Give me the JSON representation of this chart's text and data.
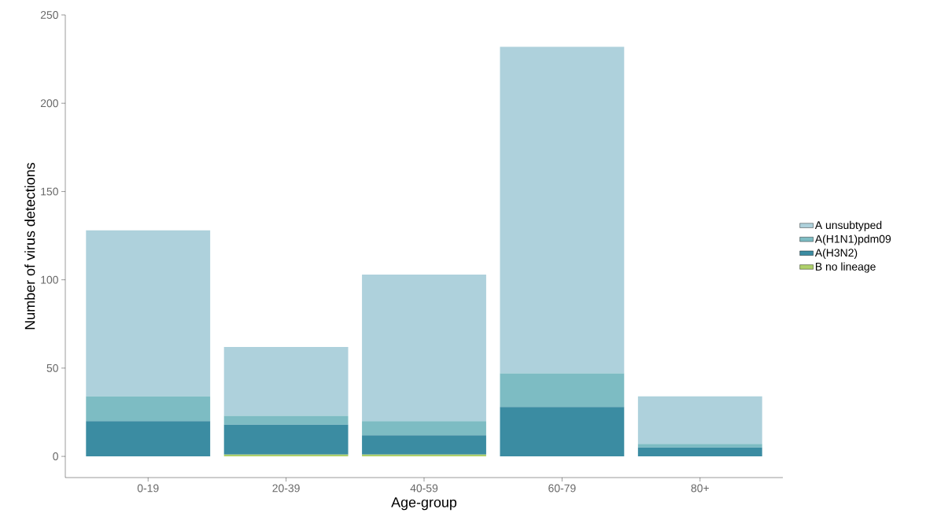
{
  "chart_data": {
    "type": "bar",
    "stacked": true,
    "xlabel": "Age-group",
    "ylabel": "Number of virus detections",
    "categories": [
      "0-19",
      "20-39",
      "40-59",
      "60-79",
      "80+"
    ],
    "series": [
      {
        "name": "B no lineage",
        "color": "#aed06a",
        "values": [
          0,
          1,
          1,
          0,
          0
        ]
      },
      {
        "name": "A(H3N2)",
        "color": "#3b8ca2",
        "values": [
          20,
          17,
          11,
          28,
          5
        ]
      },
      {
        "name": "A(H1N1)pdm09",
        "color": "#7dbcc3",
        "values": [
          14,
          5,
          8,
          19,
          2
        ]
      },
      {
        "name": "A unsubtyped",
        "color": "#aed1dc",
        "values": [
          94,
          39,
          83,
          185,
          27
        ]
      }
    ],
    "ylim": [
      -12,
      250
    ],
    "yticks": [
      0,
      50,
      100,
      150,
      200,
      250
    ],
    "grid": false,
    "legend": "right"
  }
}
